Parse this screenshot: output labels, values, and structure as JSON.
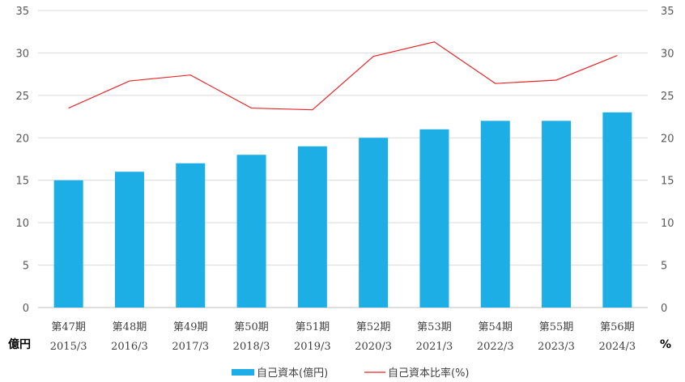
{
  "chart_data": {
    "type": "bar",
    "categories": [
      {
        "period": "第47期",
        "date": "2015/3"
      },
      {
        "period": "第48期",
        "date": "2016/3"
      },
      {
        "period": "第49期",
        "date": "2017/3"
      },
      {
        "period": "第50期",
        "date": "2018/3"
      },
      {
        "period": "第51期",
        "date": "2019/3"
      },
      {
        "period": "第52期",
        "date": "2020/3"
      },
      {
        "period": "第53期",
        "date": "2021/3"
      },
      {
        "period": "第54期",
        "date": "2022/3"
      },
      {
        "period": "第55期",
        "date": "2023/3"
      },
      {
        "period": "第56期",
        "date": "2024/3"
      }
    ],
    "series": [
      {
        "name": "自己資本(億円)",
        "type": "bar",
        "axis": "left",
        "color": "#1eaee6",
        "values": [
          15,
          16,
          17,
          18,
          19,
          20,
          21,
          22,
          22,
          23
        ]
      },
      {
        "name": "自己資本比率(%)",
        "type": "line",
        "axis": "right",
        "color": "#e8262b",
        "values": [
          23.5,
          26.7,
          27.4,
          23.5,
          23.3,
          29.6,
          31.3,
          26.4,
          26.8,
          29.7
        ]
      }
    ],
    "y_left": {
      "unit": "億円",
      "ticks": [
        0,
        5,
        10,
        15,
        20,
        25,
        30,
        35
      ],
      "range": [
        0,
        35
      ]
    },
    "y_right": {
      "unit": "%",
      "ticks": [
        0,
        5,
        10,
        15,
        20,
        25,
        30,
        35
      ],
      "range": [
        0,
        35
      ]
    },
    "grid": true,
    "legend": "bottom"
  }
}
